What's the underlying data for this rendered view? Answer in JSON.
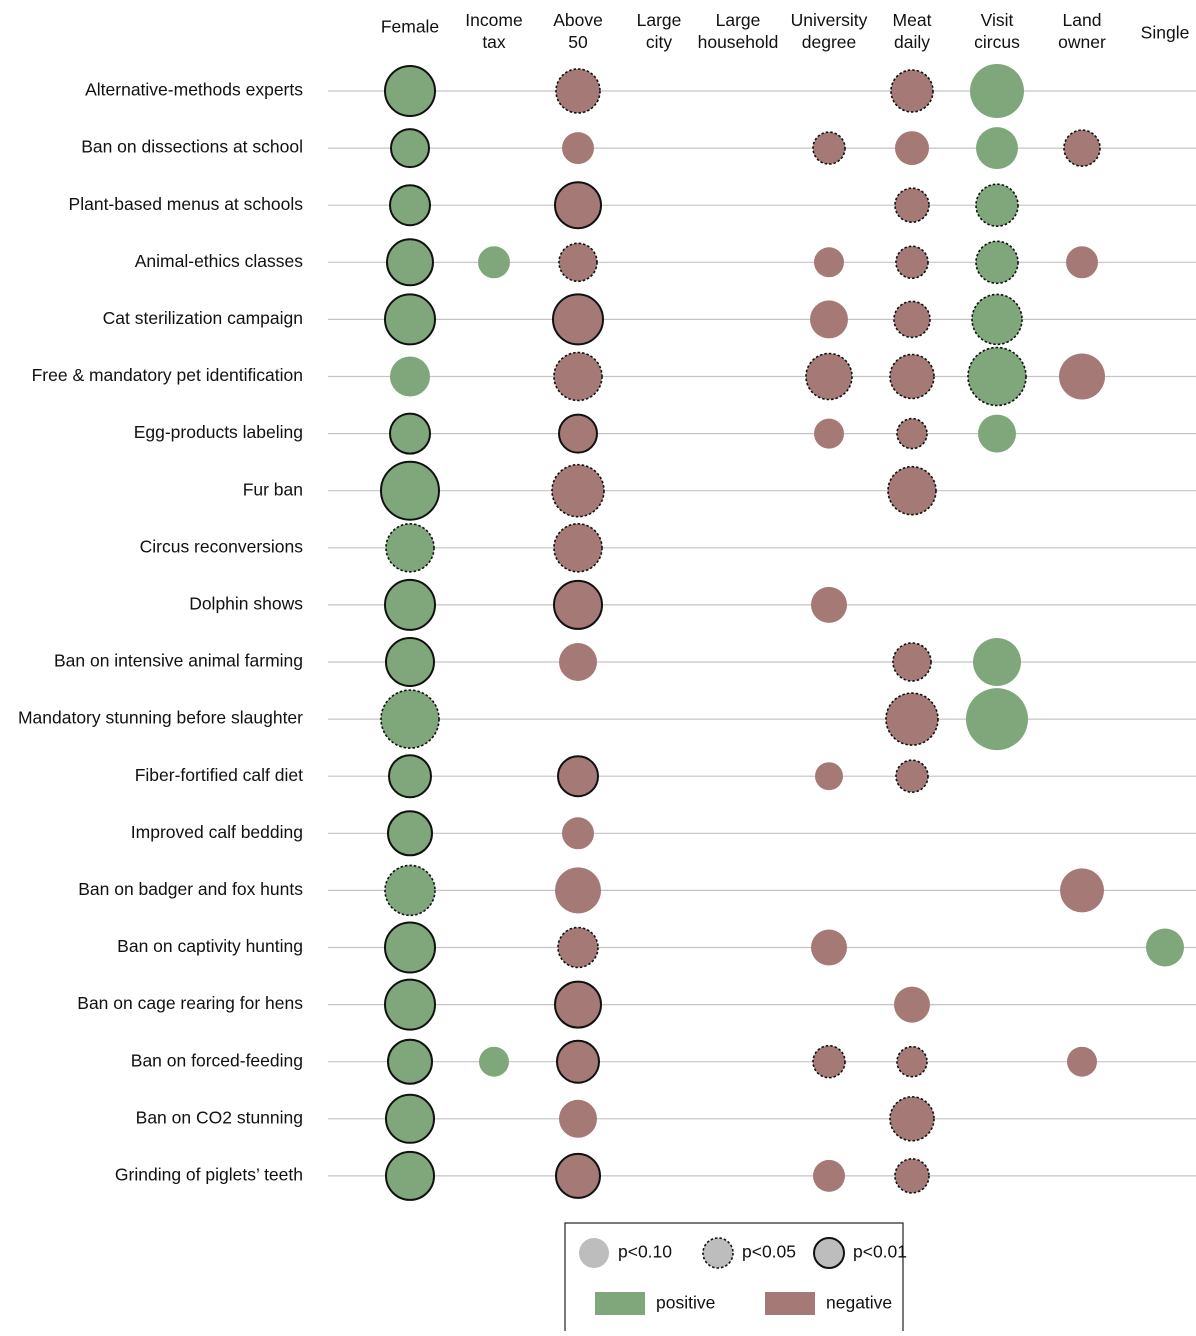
{
  "chart_data": {
    "type": "bubble-matrix",
    "categories": [
      "Alternative-methods experts",
      "Ban on dissections at school",
      "Plant-based menus at schools",
      "Animal-ethics classes",
      "Cat sterilization campaign",
      "Free & mandatory pet identification",
      "Egg-products labeling",
      "Fur ban",
      "Circus reconversions",
      "Dolphin shows",
      "Ban on intensive animal farming",
      "Mandatory stunning before slaughter",
      "Fiber-fortified calf diet",
      "Improved calf bedding",
      "Ban on badger and fox hunts",
      "Ban on captivity hunting",
      "Ban on cage rearing for hens",
      "Ban on forced-feeding",
      "Ban on CO2 stunning",
      "Grinding of piglets’ teeth"
    ],
    "series": [
      {
        "name": "Female",
        "color": "#7fa77b",
        "values": [
          50,
          38,
          40,
          46,
          50,
          40,
          40,
          58,
          48,
          50,
          48,
          58,
          42,
          44,
          50,
          50,
          50,
          44,
          48,
          48
        ],
        "p": [
          0.01,
          0.01,
          0.01,
          0.01,
          0.01,
          0.1,
          0.01,
          0.01,
          0.05,
          0.01,
          0.01,
          0.05,
          0.01,
          0.01,
          0.05,
          0.01,
          0.01,
          0.01,
          0.01,
          0.01
        ]
      },
      {
        "name": "Income tax",
        "color": "#7fa77b",
        "values": [
          null,
          null,
          null,
          32,
          null,
          null,
          null,
          null,
          null,
          null,
          null,
          null,
          null,
          null,
          null,
          null,
          null,
          30,
          null,
          null
        ],
        "p": [
          null,
          null,
          null,
          0.1,
          null,
          null,
          null,
          null,
          null,
          null,
          null,
          null,
          null,
          null,
          null,
          null,
          null,
          0.1,
          null,
          null
        ]
      },
      {
        "name": "Above 50",
        "color": "#a57a76",
        "values": [
          44,
          32,
          46,
          38,
          50,
          48,
          38,
          52,
          48,
          48,
          38,
          null,
          40,
          32,
          46,
          40,
          46,
          42,
          38,
          44
        ],
        "p": [
          0.05,
          0.1,
          0.01,
          0.05,
          0.01,
          0.05,
          0.01,
          0.05,
          0.05,
          0.01,
          0.1,
          null,
          0.01,
          0.1,
          0.1,
          0.05,
          0.01,
          0.01,
          0.1,
          0.01
        ]
      },
      {
        "name": "Large city",
        "values": [
          null,
          null,
          null,
          null,
          null,
          null,
          null,
          null,
          null,
          null,
          null,
          null,
          null,
          null,
          null,
          null,
          null,
          null,
          null,
          null
        ],
        "p": [
          null,
          null,
          null,
          null,
          null,
          null,
          null,
          null,
          null,
          null,
          null,
          null,
          null,
          null,
          null,
          null,
          null,
          null,
          null,
          null
        ]
      },
      {
        "name": "Large household",
        "values": [
          null,
          null,
          null,
          null,
          null,
          null,
          null,
          null,
          null,
          null,
          null,
          null,
          null,
          null,
          null,
          null,
          null,
          null,
          null,
          null
        ],
        "p": [
          null,
          null,
          null,
          null,
          null,
          null,
          null,
          null,
          null,
          null,
          null,
          null,
          null,
          null,
          null,
          null,
          null,
          null,
          null,
          null
        ]
      },
      {
        "name": "University degree",
        "color": "#a57a76",
        "values": [
          null,
          32,
          null,
          30,
          38,
          46,
          30,
          null,
          null,
          36,
          null,
          null,
          28,
          null,
          null,
          36,
          null,
          32,
          null,
          32
        ],
        "p": [
          null,
          0.05,
          null,
          0.1,
          0.1,
          0.05,
          0.1,
          null,
          null,
          0.1,
          null,
          null,
          0.1,
          null,
          null,
          0.1,
          null,
          0.05,
          null,
          0.1
        ]
      },
      {
        "name": "Meat daily",
        "color": "#a57a76",
        "values": [
          42,
          34,
          34,
          32,
          36,
          44,
          30,
          48,
          null,
          null,
          38,
          52,
          32,
          null,
          null,
          null,
          36,
          30,
          44,
          34
        ],
        "p": [
          0.05,
          0.1,
          0.05,
          0.05,
          0.05,
          0.05,
          0.05,
          0.05,
          null,
          null,
          0.05,
          0.05,
          0.05,
          null,
          null,
          null,
          0.1,
          0.05,
          0.05,
          0.05
        ]
      },
      {
        "name": "Visit circus",
        "color": "#7fa77b",
        "values": [
          54,
          42,
          42,
          42,
          50,
          58,
          38,
          null,
          null,
          null,
          48,
          62,
          null,
          null,
          null,
          null,
          null,
          null,
          null,
          null
        ],
        "p": [
          0.1,
          0.1,
          0.05,
          0.05,
          0.05,
          0.05,
          0.1,
          null,
          null,
          null,
          0.1,
          0.1,
          null,
          null,
          null,
          null,
          null,
          null,
          null,
          null
        ]
      },
      {
        "name": "Land owner",
        "color": "#a57a76",
        "values": [
          null,
          36,
          null,
          32,
          null,
          46,
          null,
          null,
          null,
          null,
          null,
          null,
          null,
          null,
          44,
          null,
          null,
          30,
          null,
          null
        ],
        "p": [
          null,
          0.05,
          null,
          0.1,
          null,
          0.1,
          null,
          null,
          null,
          null,
          null,
          null,
          null,
          null,
          0.1,
          null,
          null,
          0.1,
          null,
          null
        ]
      },
      {
        "name": "Single",
        "color": "#7fa77b",
        "values": [
          null,
          null,
          null,
          null,
          null,
          null,
          null,
          null,
          null,
          null,
          null,
          null,
          null,
          null,
          null,
          38,
          null,
          null,
          null,
          null
        ],
        "p": [
          null,
          null,
          null,
          null,
          null,
          null,
          null,
          null,
          null,
          null,
          null,
          null,
          null,
          null,
          null,
          0.1,
          null,
          null,
          null,
          null
        ]
      }
    ],
    "legend": {
      "significance": [
        {
          "value": 0.1,
          "label": "p<0.10"
        },
        {
          "value": 0.05,
          "label": "p<0.05"
        },
        {
          "value": 0.01,
          "label": "p<0.01"
        }
      ],
      "direction": [
        {
          "label": "positive",
          "color": "#7fa77b"
        },
        {
          "label": "negative",
          "color": "#a57a76"
        }
      ]
    }
  }
}
